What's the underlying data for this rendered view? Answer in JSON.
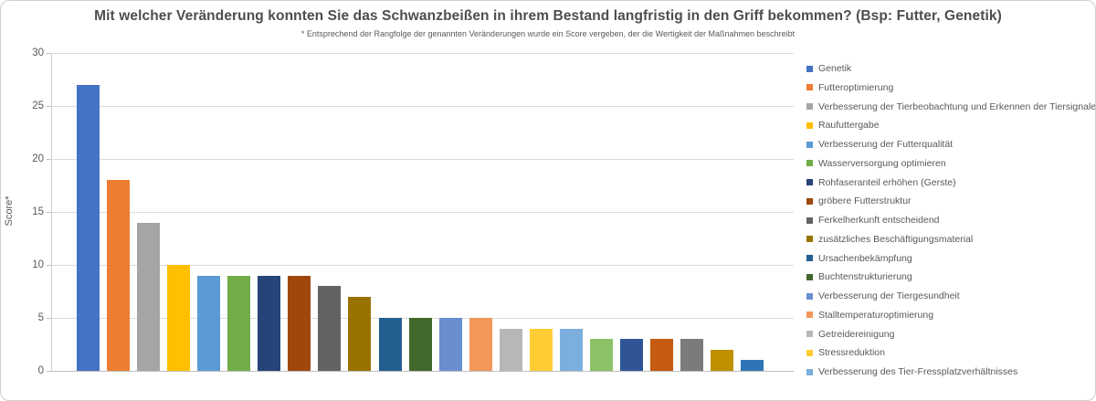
{
  "chart_data": {
    "type": "bar",
    "title": "Mit welcher Veränderung konnten Sie das Schwanzbeißen in ihrem Bestand langfristig in den Griff bekommen? (Bsp: Futter, Genetik)",
    "subtitle": "* Entsprechend der Rangfolge der genannten Veränderungen wurde ein Score vergeben, der die Wertigkeit der Maßnahmen beschreibt",
    "ylabel": "Score*",
    "ylim": [
      0,
      30
    ],
    "yticks": [
      0,
      5,
      10,
      15,
      20,
      25,
      30
    ],
    "grid": true,
    "legend_position": "right",
    "legend_visible_count": 17,
    "bars": [
      {
        "label": "Genetik",
        "value": 27,
        "color": "#4472C4"
      },
      {
        "label": "Futteroptimierung",
        "value": 18,
        "color": "#ED7D31"
      },
      {
        "label": "Verbesserung der Tierbeobachtung und Erkennen der Tiersignale",
        "value": 14,
        "color": "#A5A5A5"
      },
      {
        "label": "Raufuttergabe",
        "value": 10,
        "color": "#FFC000"
      },
      {
        "label": "Verbesserung der Futterqualität",
        "value": 9,
        "color": "#5B9BD5"
      },
      {
        "label": "Wasserversorgung optimieren",
        "value": 9,
        "color": "#70AD47"
      },
      {
        "label": "Rohfaseranteil erhöhen (Gerste)",
        "value": 9,
        "color": "#264478"
      },
      {
        "label": "gröbere Futterstruktur",
        "value": 9,
        "color": "#9E480E"
      },
      {
        "label": "Ferkelherkunft entscheidend",
        "value": 8,
        "color": "#636363"
      },
      {
        "label": "zusätzliches Beschäftigungsmaterial",
        "value": 7,
        "color": "#997300"
      },
      {
        "label": "Ursachenbekämpfung",
        "value": 5,
        "color": "#255E91"
      },
      {
        "label": "Buchtenstrukturierung",
        "value": 5,
        "color": "#43682B"
      },
      {
        "label": "Verbesserung der Tiergesundheit",
        "value": 5,
        "color": "#698ED0"
      },
      {
        "label": "Stalltemperaturoptimierung",
        "value": 5,
        "color": "#F1975A"
      },
      {
        "label": "Getreidereinigung",
        "value": 4,
        "color": "#B7B7B7"
      },
      {
        "label": "Stressreduktion",
        "value": 4,
        "color": "#FFCD33"
      },
      {
        "label": "Verbesserung des Tier-Fressplatzverhältnisses",
        "value": 4,
        "color": "#7CAFDD"
      },
      {
        "label": "",
        "value": 3,
        "color": "#8CC168"
      },
      {
        "label": "",
        "value": 3,
        "color": "#2F5597"
      },
      {
        "label": "",
        "value": 3,
        "color": "#C55A11"
      },
      {
        "label": "",
        "value": 3,
        "color": "#7B7B7B"
      },
      {
        "label": "",
        "value": 2,
        "color": "#BF8F00"
      },
      {
        "label": "",
        "value": 1,
        "color": "#2E75B6"
      }
    ]
  }
}
